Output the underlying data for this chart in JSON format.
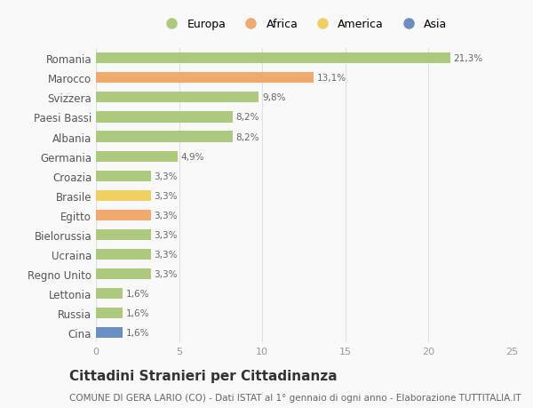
{
  "categories": [
    "Romania",
    "Marocco",
    "Svizzera",
    "Paesi Bassi",
    "Albania",
    "Germania",
    "Croazia",
    "Brasile",
    "Egitto",
    "Bielorussia",
    "Ucraina",
    "Regno Unito",
    "Lettonia",
    "Russia",
    "Cina"
  ],
  "values": [
    21.3,
    13.1,
    9.8,
    8.2,
    8.2,
    4.9,
    3.3,
    3.3,
    3.3,
    3.3,
    3.3,
    3.3,
    1.6,
    1.6,
    1.6
  ],
  "labels": [
    "21,3%",
    "13,1%",
    "9,8%",
    "8,2%",
    "8,2%",
    "4,9%",
    "3,3%",
    "3,3%",
    "3,3%",
    "3,3%",
    "3,3%",
    "3,3%",
    "1,6%",
    "1,6%",
    "1,6%"
  ],
  "continents": [
    "Europa",
    "Africa",
    "Europa",
    "Europa",
    "Europa",
    "Europa",
    "Europa",
    "America",
    "Africa",
    "Europa",
    "Europa",
    "Europa",
    "Europa",
    "Europa",
    "Asia"
  ],
  "colors": {
    "Europa": "#adc97e",
    "Africa": "#f2a96e",
    "America": "#f0d060",
    "Asia": "#6b8fc2"
  },
  "legend_order": [
    "Europa",
    "Africa",
    "America",
    "Asia"
  ],
  "title": "Cittadini Stranieri per Cittadinanza",
  "subtitle": "COMUNE DI GERA LARIO (CO) - Dati ISTAT al 1° gennaio di ogni anno - Elaborazione TUTTITALIA.IT",
  "xlim": [
    0,
    25
  ],
  "xticks": [
    0,
    5,
    10,
    15,
    20,
    25
  ],
  "background_color": "#f9f9f9",
  "grid_color": "#e0e0e0",
  "bar_label_fontsize": 7.5,
  "title_fontsize": 11,
  "subtitle_fontsize": 7.5,
  "ytick_fontsize": 8.5,
  "xtick_fontsize": 8,
  "legend_fontsize": 9
}
